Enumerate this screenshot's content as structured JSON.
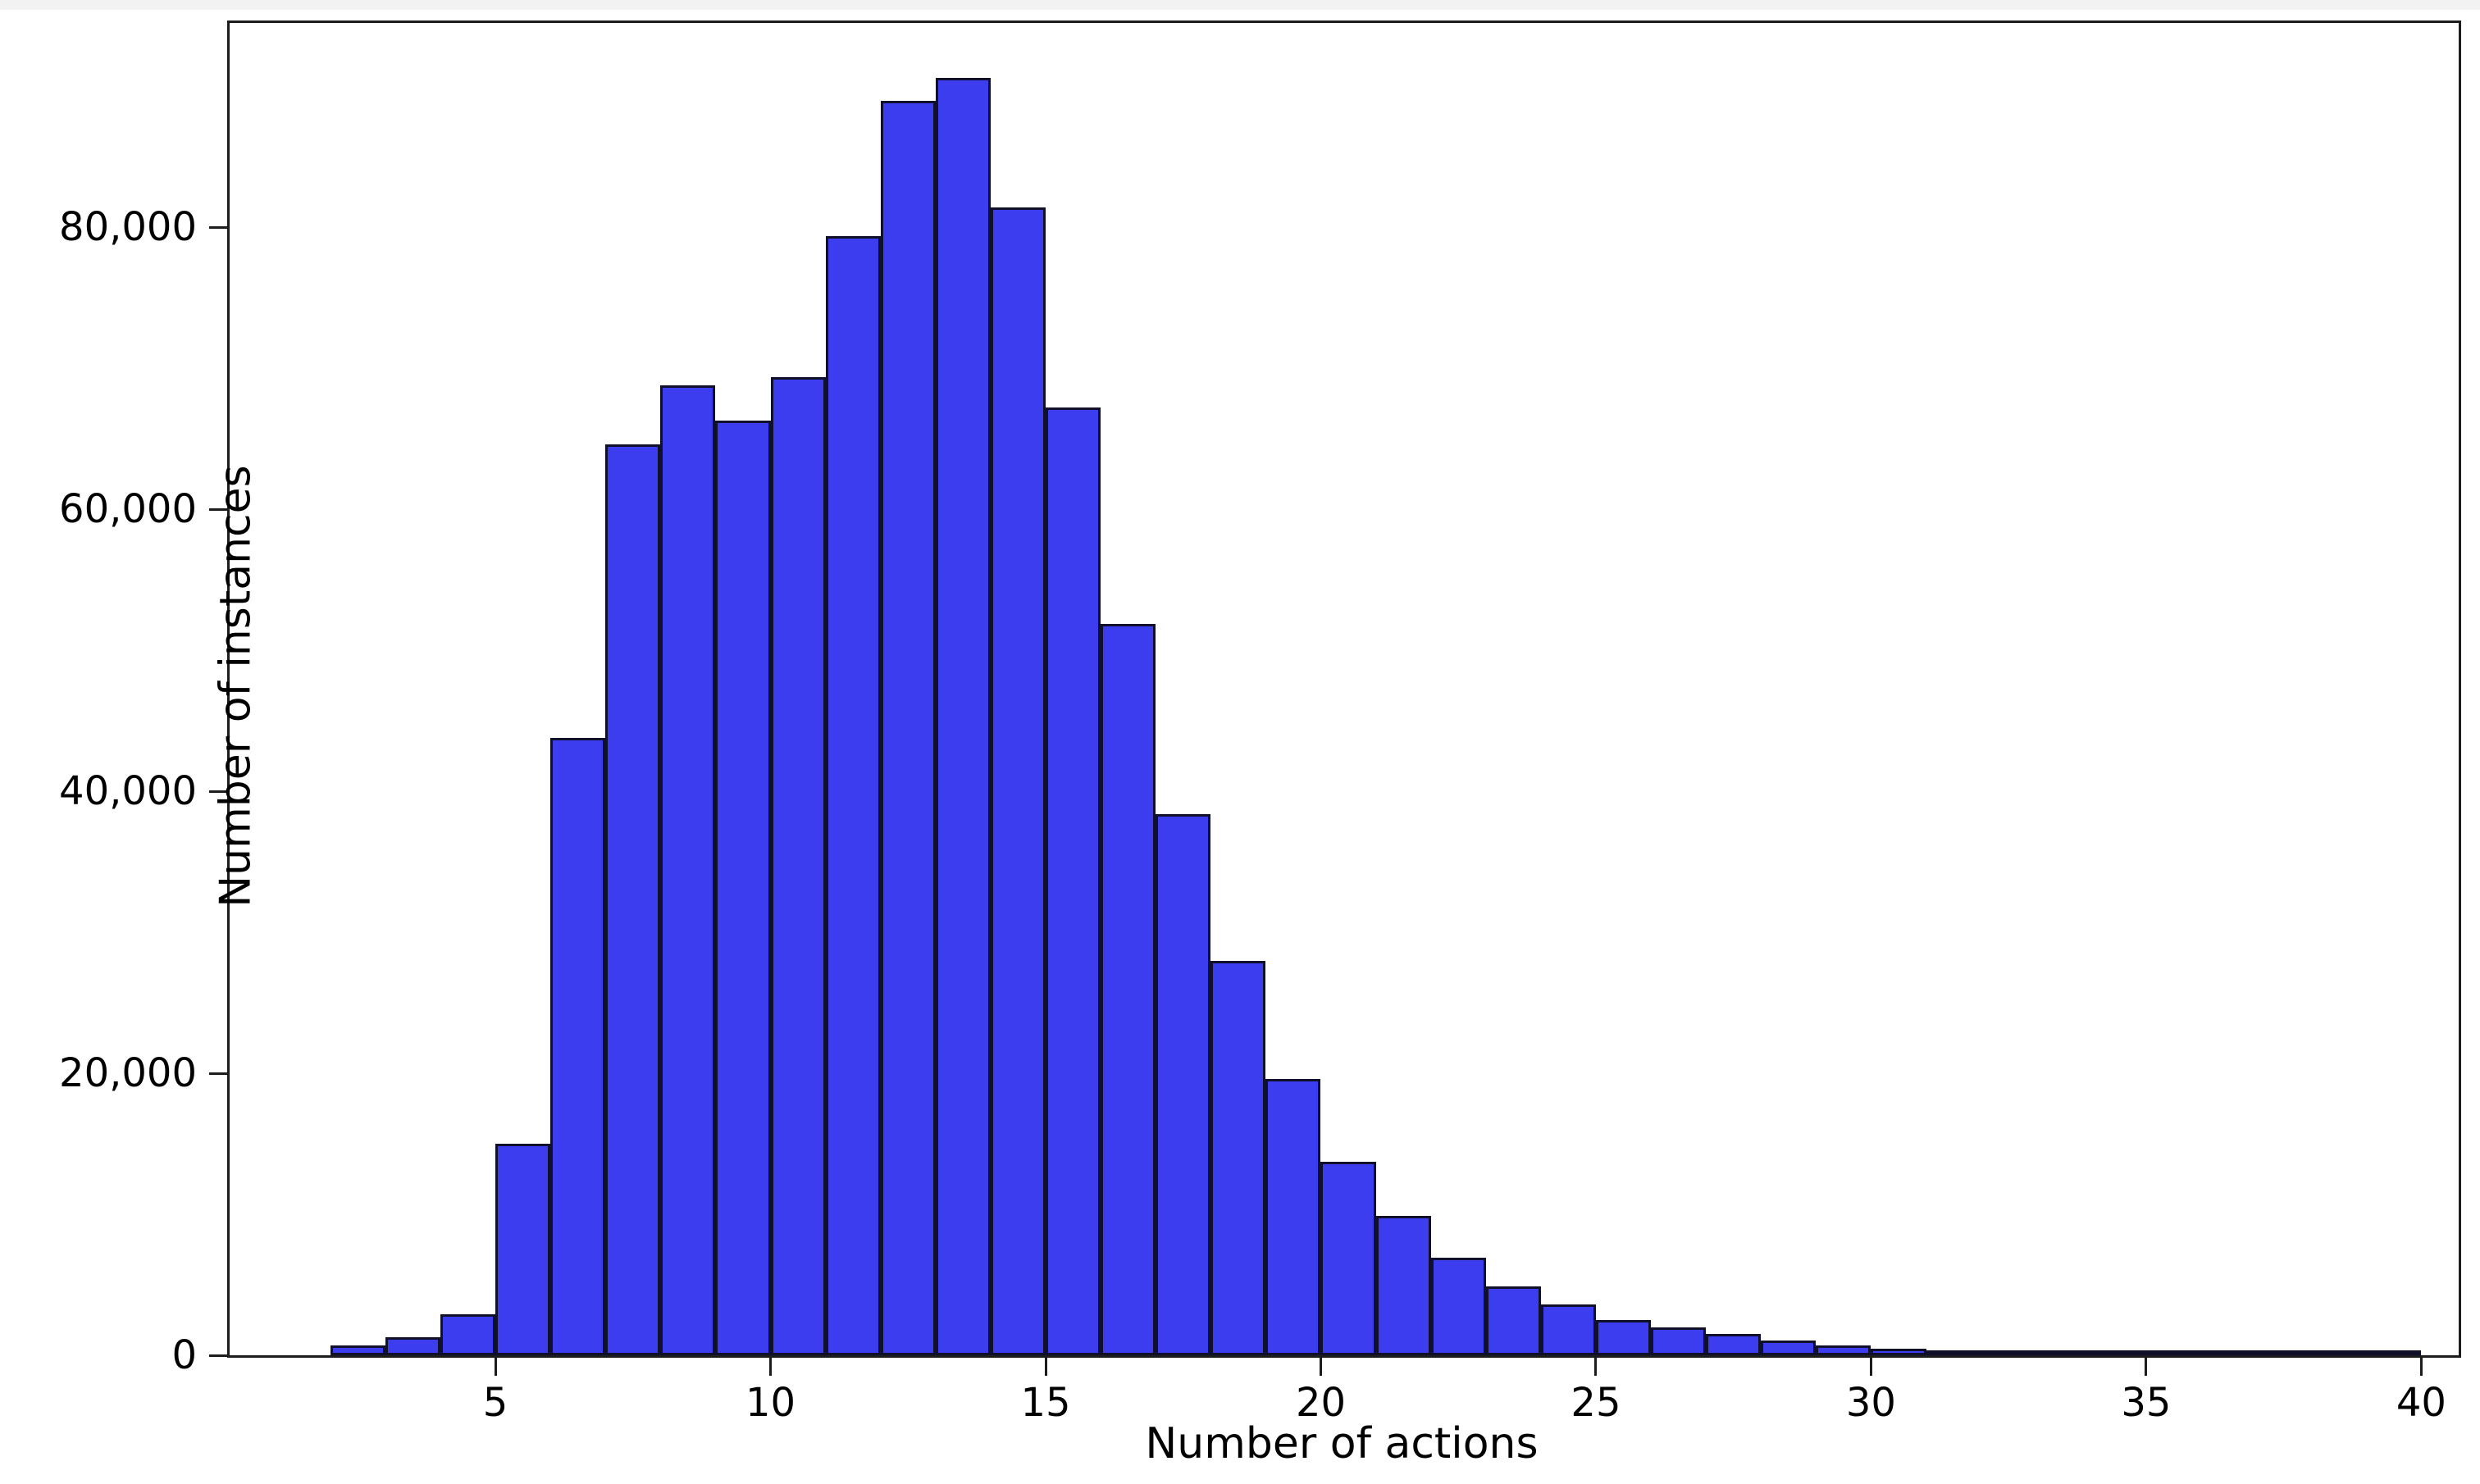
{
  "figure": {
    "xlabel": "Number of actions",
    "ylabel": "Number of instances"
  },
  "chart_data": {
    "type": "bar",
    "subtype": "histogram",
    "title": "",
    "xlabel": "Number of actions",
    "ylabel": "Number of instances",
    "bin_width": 1,
    "bins": [
      2,
      3,
      4,
      5,
      6,
      7,
      8,
      9,
      10,
      11,
      12,
      13,
      14,
      15,
      16,
      17,
      18,
      19,
      20,
      21,
      22,
      23,
      24,
      25,
      26,
      27,
      28,
      29,
      30,
      31,
      32,
      33,
      34,
      35,
      36,
      37,
      38,
      39
    ],
    "counts": [
      700,
      1300,
      2900,
      15000,
      43800,
      64600,
      68800,
      66300,
      69400,
      79400,
      89000,
      90600,
      81400,
      67200,
      51900,
      38400,
      28000,
      19600,
      13700,
      9900,
      6900,
      4900,
      3600,
      2500,
      2000,
      1500,
      1050,
      700,
      450,
      290,
      180,
      120,
      80,
      50,
      30,
      20,
      12,
      8
    ],
    "x_ticks": [
      {
        "value": 5,
        "label": "5"
      },
      {
        "value": 10,
        "label": "10"
      },
      {
        "value": 15,
        "label": "15"
      },
      {
        "value": 20,
        "label": "20"
      },
      {
        "value": 25,
        "label": "25"
      },
      {
        "value": 30,
        "label": "30"
      },
      {
        "value": 35,
        "label": "35"
      },
      {
        "value": 40,
        "label": "40"
      }
    ],
    "y_ticks": [
      {
        "value": 0,
        "label": "0"
      },
      {
        "value": 20000,
        "label": "20,000"
      },
      {
        "value": 40000,
        "label": "40,000"
      },
      {
        "value": 60000,
        "label": "60,000"
      },
      {
        "value": 80000,
        "label": "80,000"
      }
    ],
    "xlim": [
      0.17,
      40.68
    ],
    "ylim": [
      0,
      94500
    ],
    "grid": false,
    "legend_position": "none",
    "colors": {
      "bar_fill": "#3d3df0",
      "bar_edge": "#10102a",
      "spine": "#1c1c1c",
      "text": "#000000",
      "background": "#ffffff"
    }
  }
}
